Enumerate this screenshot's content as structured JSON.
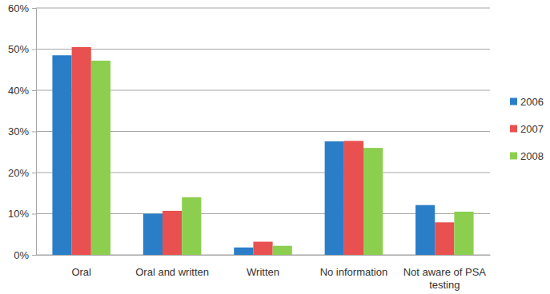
{
  "chart_data": {
    "type": "bar",
    "categories": [
      "Oral",
      "Oral and written",
      "Written",
      "No information",
      "Not aware of PSA testing"
    ],
    "series": [
      {
        "name": "2006",
        "color": "#2a7ec8",
        "values": [
          48.5,
          10,
          1.8,
          27.6,
          12.1
        ]
      },
      {
        "name": "2007",
        "color": "#e8514f",
        "values": [
          50.5,
          10.7,
          3.2,
          27.7,
          7.9
        ]
      },
      {
        "name": "2008",
        "color": "#8ccf4f",
        "values": [
          47.2,
          14,
          2.2,
          26,
          10.5
        ]
      }
    ],
    "ylim": [
      0,
      60
    ],
    "yticks": [
      {
        "value": 0,
        "label": "0%"
      },
      {
        "value": 10,
        "label": "10%"
      },
      {
        "value": 20,
        "label": "20%"
      },
      {
        "value": 30,
        "label": "30%"
      },
      {
        "value": 40,
        "label": "40%"
      },
      {
        "value": 50,
        "label": "50%"
      },
      {
        "value": 60,
        "label": "60%"
      }
    ],
    "grid": true,
    "legend": "right"
  }
}
